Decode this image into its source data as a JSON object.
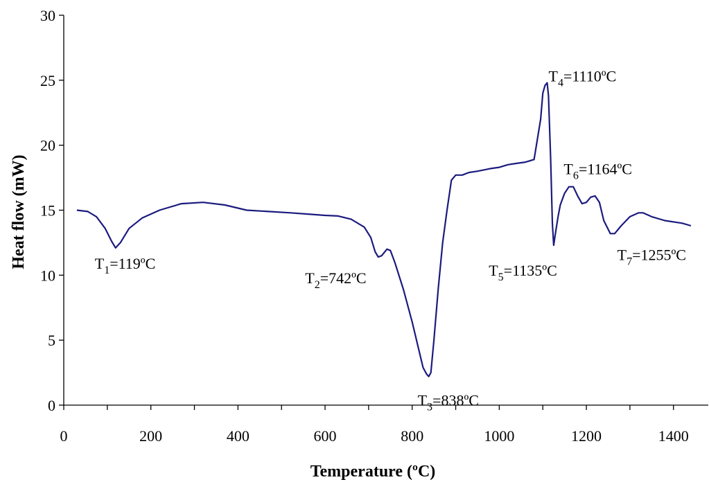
{
  "chart_data": {
    "type": "line",
    "title": "",
    "xlabel": "Temperature (ºC)",
    "ylabel": "Heat flow (mW)",
    "xlim": [
      0,
      1480
    ],
    "ylim": [
      0,
      30
    ],
    "x_ticks": [
      "0",
      "200",
      "400",
      "600",
      "800",
      "1000",
      "1200",
      "1400"
    ],
    "y_ticks": [
      "0",
      "5",
      "10",
      "15",
      "20",
      "25",
      "30"
    ],
    "grid": false,
    "legend": "none",
    "line_color": "#1a1a7e",
    "series": [
      {
        "x": [
          30,
          55,
          75,
          95,
          110,
          119,
          130,
          150,
          180,
          220,
          270,
          320,
          370,
          420,
          470,
          520,
          560,
          600,
          630,
          660,
          690,
          705,
          715,
          722,
          730,
          742,
          750,
          760,
          780,
          800,
          815,
          825,
          833,
          838,
          843,
          850,
          860,
          870,
          880,
          890,
          900,
          915,
          930,
          950,
          980,
          1000,
          1020,
          1040,
          1060,
          1080,
          1095,
          1100,
          1105,
          1110,
          1113,
          1118,
          1122,
          1125,
          1128,
          1135,
          1140,
          1150,
          1160,
          1170,
          1180,
          1190,
          1200,
          1210,
          1220,
          1230,
          1240,
          1255,
          1265,
          1280,
          1300,
          1320,
          1330,
          1350,
          1380,
          1420,
          1440
        ],
        "y": [
          15.0,
          14.9,
          14.5,
          13.6,
          12.6,
          12.1,
          12.5,
          13.6,
          14.4,
          15.0,
          15.5,
          15.6,
          15.4,
          15.0,
          14.9,
          14.8,
          14.7,
          14.6,
          14.55,
          14.3,
          13.7,
          12.9,
          11.8,
          11.4,
          11.5,
          12.0,
          11.9,
          11.0,
          8.9,
          6.4,
          4.3,
          2.9,
          2.4,
          2.2,
          2.5,
          5.0,
          9.0,
          12.5,
          15.0,
          17.3,
          17.7,
          17.7,
          17.9,
          18.0,
          18.2,
          18.3,
          18.5,
          18.6,
          18.7,
          18.9,
          22.0,
          24.0,
          24.6,
          24.8,
          23.8,
          19.0,
          14.0,
          12.3,
          13.0,
          14.5,
          15.4,
          16.3,
          16.8,
          16.8,
          16.1,
          15.5,
          15.6,
          16.0,
          16.1,
          15.6,
          14.2,
          13.2,
          13.2,
          13.8,
          14.5,
          14.8,
          14.8,
          14.5,
          14.2,
          14.0,
          13.8
        ]
      }
    ],
    "annotations": [
      {
        "text": "T",
        "sub": "1",
        "rest": "=119ºC",
        "x": 119,
        "y": 12.1
      },
      {
        "text": "T",
        "sub": "2",
        "rest": "=742ºC",
        "x": 742,
        "y": 11.4
      },
      {
        "text": "T",
        "sub": "3",
        "rest": "=838ºC",
        "x": 838,
        "y": 2.2
      },
      {
        "text": "T",
        "sub": "4",
        "rest": "=1110ºC",
        "x": 1110,
        "y": 24.8
      },
      {
        "text": "T",
        "sub": "5",
        "rest": "=1135ºC",
        "x": 1135,
        "y": 12.3
      },
      {
        "text": "T",
        "sub": "6",
        "rest": "=1164ºC",
        "x": 1164,
        "y": 16.8
      },
      {
        "text": "T",
        "sub": "7",
        "rest": "=1255ºC",
        "x": 1255,
        "y": 13.2
      }
    ]
  }
}
